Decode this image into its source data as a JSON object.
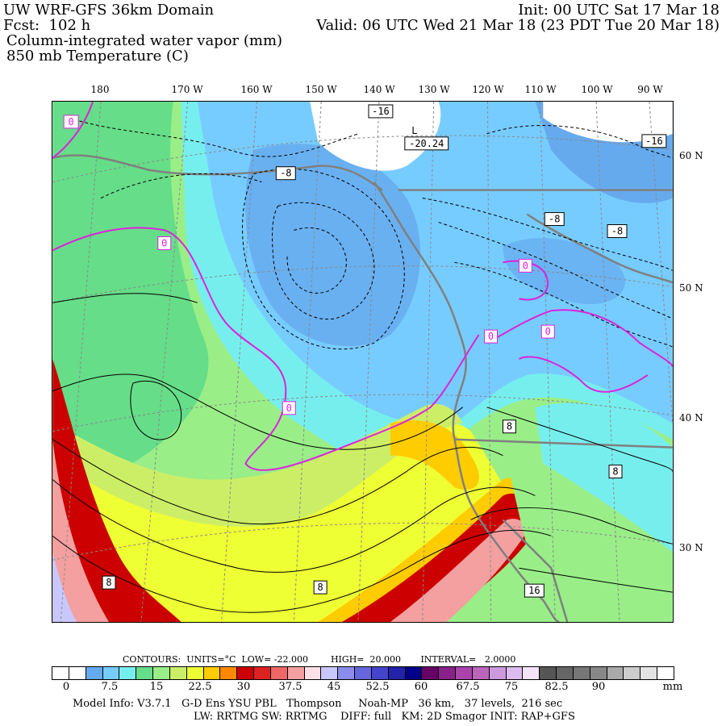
{
  "header": {
    "line1_left": "UW WRF-GFS 36km Domain",
    "line1_right": "Init: 00 UTC Sat 17 Mar 18",
    "line2_left": "Fcst:  102 h",
    "line2_right": "Valid: 06 UTC Wed 21 Mar 18 (23 PDT Tue 20 Mar 18)",
    "line3": "Column-integrated water vapor (mm)",
    "line4": "850 mb Temperature (C)"
  },
  "longitude_labels": [
    "180",
    "170 W",
    "160 W",
    "150 W",
    "140 W",
    "130 W",
    "120 W",
    "110 W",
    "100 W",
    "90 W"
  ],
  "latitude_labels": [
    "60 N",
    "50 N",
    "40 N",
    "30 N"
  ],
  "contour_labels": {
    "temperature": [
      "0",
      "0",
      "0",
      "0",
      "0",
      "0",
      "-16",
      "-16",
      "-8",
      "-8",
      "-8",
      "8",
      "8",
      "8",
      "8",
      "16"
    ],
    "low_center_letter": "L",
    "low_center_value": "-20.24"
  },
  "contour_info": "CONTOURS:  UNITS=°C  LOW= -22.000        HIGH=  20.000       INTERVAL=   2.0000",
  "colorbar": {
    "colors": [
      "#ffffff",
      "#ffffff",
      "#66aaee",
      "#77ccff",
      "#77eeee",
      "#66dd88",
      "#99ee88",
      "#ccee66",
      "#eeff33",
      "#ffcc00",
      "#ff8800",
      "#cc0000",
      "#dd2222",
      "#ee6666",
      "#f4a0a0",
      "#ffe0e8",
      "#c8c8ff",
      "#8c8cee",
      "#6666dd",
      "#4444cc",
      "#2222aa",
      "#000088",
      "#660066",
      "#882288",
      "#aa44aa",
      "#bb66bb",
      "#cc99dd",
      "#ddbbee",
      "#f4e4f8",
      "#555555",
      "#666666",
      "#777777",
      "#888888",
      "#aaaaaa",
      "#cccccc",
      "#e4e4e4",
      "#ffffff"
    ],
    "tick_labels": [
      "0",
      "7.5",
      "15",
      "22.5",
      "30",
      "37.5",
      "45",
      "52.5",
      "60",
      "67.5",
      "75",
      "82.5",
      "90"
    ],
    "unit": "mm"
  },
  "footer": {
    "line1": "Model Info: V3.7.1   G-D Ens YSU PBL   Thompson     Noah-MP   36 km,   37 levels,  216 sec",
    "line2": "LW: RRTMG SW: RRTMG    DIFF: full   KM: 2D Smagor INIT: RAP+GFS"
  },
  "legend_colors": {
    "magenta_zero_isotherm": "#dd22dd",
    "coastline": "#808080",
    "contour": "#000000"
  }
}
